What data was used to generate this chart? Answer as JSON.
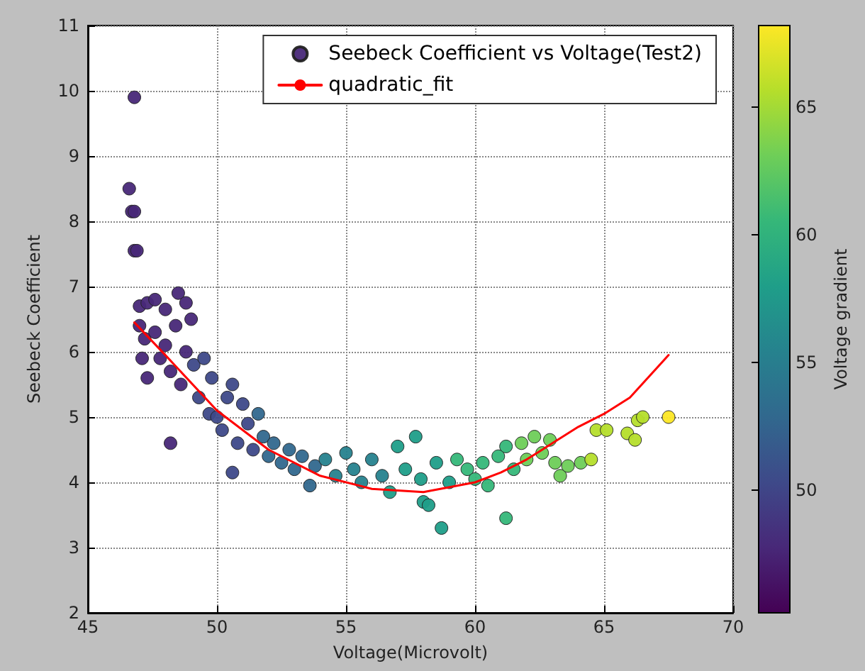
{
  "chart_data": {
    "type": "scatter",
    "xlabel": "Voltage(Microvolt)",
    "ylabel": "Seebeck Coefficient",
    "clabel": "Voltage gradient",
    "xlim": [
      45,
      70
    ],
    "xticks": [
      45,
      50,
      55,
      60,
      65,
      70
    ],
    "ylim": [
      2,
      11
    ],
    "yticks": [
      2,
      3,
      4,
      5,
      6,
      7,
      8,
      9,
      10,
      11
    ],
    "clim": [
      45.2,
      68.2
    ],
    "cticks": [
      50,
      55,
      60,
      65
    ],
    "grid": true,
    "legend": "top right",
    "marker": "circle",
    "series": [
      {
        "name": "Seebeck Coefficient vs Voltage(Test2)",
        "x": [
          46.8,
          46.6,
          46.7,
          46.8,
          46.8,
          46.9,
          47,
          47.3,
          47.6,
          48,
          48.5,
          48.8,
          47,
          47.2,
          47.1,
          47.3,
          47.6,
          47.8,
          48,
          48.2,
          48.4,
          48.6,
          48.8,
          49,
          49.1,
          49.3,
          49.5,
          49.8,
          49.7,
          50,
          50.2,
          50.4,
          50.6,
          50.8,
          50.6,
          48.2,
          51,
          51.2,
          51.4,
          51.6,
          51.8,
          52,
          52.2,
          52.5,
          52.8,
          53,
          53.3,
          53.6,
          53.8,
          54.2,
          54.6,
          55,
          55.3,
          55.6,
          56,
          56.4,
          56.7,
          57,
          57.3,
          57.7,
          57.9,
          58,
          58.2,
          58.7,
          58.5,
          59,
          59.3,
          59.7,
          60,
          60.3,
          60.5,
          60.9,
          61.2,
          61.2,
          61.5,
          61.8,
          62,
          62.3,
          62.6,
          62.9,
          63.1,
          63.3,
          63.6,
          64.1,
          64.5,
          64.7,
          65.1,
          65.9,
          66.2,
          66.3,
          66.5,
          67.5
        ],
        "values": [
          9.9,
          8.5,
          8.15,
          8.15,
          7.55,
          7.55,
          6.7,
          6.75,
          6.8,
          6.65,
          6.9,
          6.75,
          6.4,
          6.2,
          5.9,
          5.6,
          6.3,
          5.9,
          6.1,
          5.7,
          6.4,
          5.5,
          6.0,
          6.5,
          5.8,
          5.3,
          5.9,
          5.6,
          5.05,
          5.0,
          4.8,
          5.3,
          5.5,
          4.6,
          4.15,
          4.6,
          5.2,
          4.9,
          4.5,
          5.05,
          4.7,
          4.4,
          4.6,
          4.3,
          4.5,
          4.2,
          4.4,
          3.95,
          4.25,
          4.35,
          4.1,
          4.45,
          4.2,
          4.0,
          4.35,
          4.1,
          3.85,
          4.55,
          4.2,
          4.7,
          4.05,
          3.7,
          3.65,
          3.3,
          4.3,
          4.0,
          4.35,
          4.2,
          4.05,
          4.3,
          3.95,
          4.4,
          3.45,
          4.55,
          4.2,
          4.6,
          4.35,
          4.7,
          4.45,
          4.65,
          4.3,
          4.1,
          4.25,
          4.3,
          4.35,
          4.8,
          4.8,
          4.75,
          4.65,
          4.95,
          5.0,
          5.0
        ],
        "colors": [
          "#482878",
          "#482878",
          "#482878",
          "#482878",
          "#482878",
          "#482878",
          "#482878",
          "#482878",
          "#482878",
          "#482878",
          "#482878",
          "#482878",
          "#482878",
          "#482878",
          "#482878",
          "#482878",
          "#482878",
          "#482878",
          "#482878",
          "#482878",
          "#482878",
          "#482878",
          "#482878",
          "#482878",
          "#3e4989",
          "#3e4989",
          "#3e4989",
          "#3e4989",
          "#3e4989",
          "#3e4989",
          "#3e4989",
          "#3e4989",
          "#3e4989",
          "#3e4989",
          "#3e4989",
          "#482878",
          "#3e4989",
          "#3e4989",
          "#3e4989",
          "#31688e",
          "#31688e",
          "#31688e",
          "#31688e",
          "#31688e",
          "#31688e",
          "#31688e",
          "#31688e",
          "#31688e",
          "#31688e",
          "#26828e",
          "#26828e",
          "#26828e",
          "#26828e",
          "#26828e",
          "#26828e",
          "#26828e",
          "#1f9e89",
          "#1f9e89",
          "#1f9e89",
          "#1f9e89",
          "#1f9e89",
          "#1f9e89",
          "#1f9e89",
          "#1f9e89",
          "#1f9e89",
          "#1f9e89",
          "#35b779",
          "#35b779",
          "#35b779",
          "#35b779",
          "#35b779",
          "#35b779",
          "#35b779",
          "#35b779",
          "#35b779",
          "#6ece58",
          "#6ece58",
          "#6ece58",
          "#6ece58",
          "#6ece58",
          "#6ece58",
          "#6ece58",
          "#6ece58",
          "#6ece58",
          "#b5de2b",
          "#b5de2b",
          "#b5de2b",
          "#b5de2b",
          "#b5de2b",
          "#b5de2b",
          "#b5de2b",
          "#fde725"
        ]
      },
      {
        "name": "quadratic_fit",
        "type": "line",
        "color": "#ff0000",
        "line_style": "solid",
        "marker": "none",
        "x": [
          46.8,
          48,
          50,
          52,
          54,
          56,
          58,
          60,
          61,
          62,
          63,
          64,
          65,
          66,
          67.5
        ],
        "values": [
          6.45,
          5.95,
          5.1,
          4.5,
          4.1,
          3.9,
          3.85,
          4.0,
          4.15,
          4.35,
          4.6,
          4.85,
          5.05,
          5.3,
          5.95
        ]
      }
    ]
  }
}
